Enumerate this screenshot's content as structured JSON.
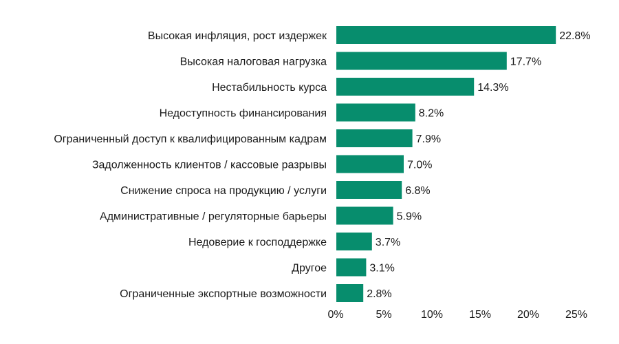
{
  "chart_data": {
    "type": "bar",
    "orientation": "horizontal",
    "title": "",
    "xlabel": "",
    "ylabel": "",
    "categories": [
      "Высокая инфляция, рост издержек",
      "Высокая налоговая нагрузка",
      "Нестабильность курса",
      "Недоступность финансирования",
      "Ограниченный доступ к квалифицированным кадрам",
      "Задолженность клиентов / кассовые разрывы",
      "Снижение спроса на продукцию / услуги",
      "Административные / регуляторные барьеры",
      "Недоверие к господдержке",
      "Другое",
      "Ограниченные экспортные возможности"
    ],
    "values": [
      22.8,
      17.7,
      14.3,
      8.2,
      7.9,
      7.0,
      6.8,
      5.9,
      3.7,
      3.1,
      2.8
    ],
    "value_labels": [
      "22.8%",
      "17.7%",
      "14.3%",
      "8.2%",
      "7.9%",
      "7.0%",
      "6.8%",
      "5.9%",
      "3.7%",
      "3.1%",
      "2.8%"
    ],
    "xlim": [
      0,
      25
    ],
    "xticks": [
      0,
      5,
      10,
      15,
      20,
      25
    ],
    "xtick_labels": [
      "0%",
      "5%",
      "10%",
      "15%",
      "20%",
      "25%"
    ],
    "grid": false,
    "legend": "none",
    "bar_color": "#078d6d"
  }
}
